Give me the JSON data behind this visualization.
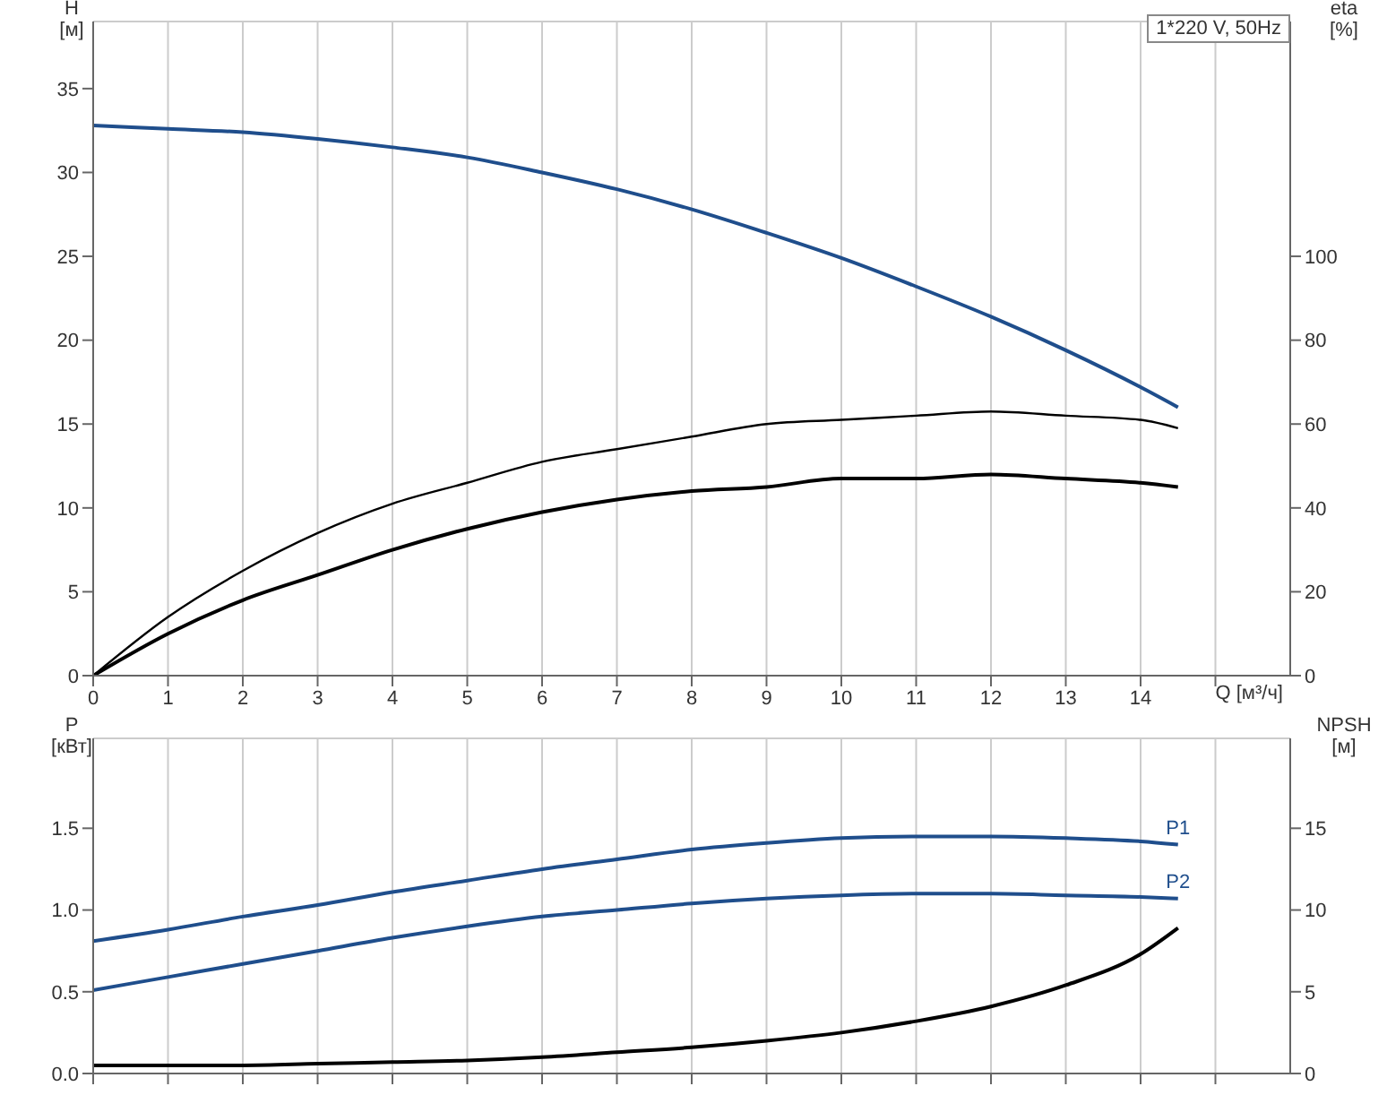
{
  "chart_data": [
    {
      "type": "line",
      "ylabel": "H [м]",
      "y2label": "eta [%]",
      "xlabel": "Q [м³/ч]",
      "annotations": [
        "1*220 V, 50Hz"
      ],
      "grid": true,
      "legend": false,
      "x": [
        0,
        1,
        2,
        3,
        4,
        5,
        6,
        7,
        8,
        9,
        10,
        11,
        12,
        13,
        14,
        14.5
      ],
      "xlim": [
        0,
        16
      ],
      "xticks": [
        0,
        1,
        2,
        3,
        4,
        5,
        6,
        7,
        8,
        9,
        10,
        11,
        12,
        13,
        14,
        {
          "value": 15,
          "label": null
        }
      ],
      "ylim": [
        0,
        39
      ],
      "yticks": [
        0,
        5,
        10,
        15,
        20,
        25,
        30,
        35
      ],
      "y2lim": [
        0,
        156
      ],
      "y2ticks": [
        0,
        20,
        40,
        60,
        80,
        100
      ],
      "series": [
        {
          "color": "#1f4e8c",
          "values": [
            32.8,
            32.6,
            32.4,
            32.0,
            31.5,
            30.9,
            30.0,
            29.0,
            27.8,
            26.4,
            24.9,
            23.2,
            21.4,
            19.4,
            17.2,
            16.0
          ]
        },
        {
          "color": "#000000",
          "axis": "y2",
          "values": [
            0,
            14,
            25,
            34,
            41,
            46,
            51,
            54,
            57,
            60,
            61,
            62,
            63,
            62,
            61,
            59
          ]
        },
        {
          "color": "#000000",
          "axis": "y2",
          "values": [
            0,
            10,
            18,
            24,
            30,
            35,
            39,
            42,
            44,
            45,
            47,
            47,
            48,
            47,
            46,
            45
          ]
        }
      ]
    },
    {
      "type": "line",
      "ylabel": "P [кВт]",
      "y2label": "NPSH [м]",
      "grid": true,
      "legend": false,
      "tick_labels": "y",
      "x": [
        0,
        1,
        2,
        3,
        4,
        5,
        6,
        7,
        8,
        9,
        10,
        11,
        12,
        13,
        14,
        14.5
      ],
      "xlim": [
        0,
        16
      ],
      "xticks": [
        0,
        1,
        2,
        3,
        4,
        5,
        6,
        7,
        8,
        9,
        10,
        11,
        12,
        13,
        14,
        15
      ],
      "ylim": [
        0,
        2.05
      ],
      "yticks": [
        {
          "value": 0,
          "label": "0.0"
        },
        0.5,
        {
          "value": 1,
          "label": "1.0"
        },
        1.5
      ],
      "y2lim": [
        0,
        20.5
      ],
      "y2ticks": [
        0,
        5,
        10,
        15
      ],
      "series": [
        {
          "name": "P1",
          "color": "#1f4e8c",
          "values": [
            0.81,
            0.88,
            0.96,
            1.03,
            1.11,
            1.18,
            1.25,
            1.31,
            1.37,
            1.41,
            1.44,
            1.45,
            1.45,
            1.44,
            1.42,
            1.4
          ]
        },
        {
          "name": "P2",
          "color": "#1f4e8c",
          "values": [
            0.51,
            0.59,
            0.67,
            0.75,
            0.83,
            0.9,
            0.96,
            1.0,
            1.04,
            1.07,
            1.09,
            1.1,
            1.1,
            1.09,
            1.08,
            1.07
          ]
        },
        {
          "color": "#000000",
          "axis": "y2",
          "values": [
            0.5,
            0.5,
            0.5,
            0.6,
            0.7,
            0.8,
            1.0,
            1.3,
            1.6,
            2.0,
            2.5,
            3.2,
            4.1,
            5.4,
            7.3,
            8.9
          ]
        }
      ]
    }
  ]
}
